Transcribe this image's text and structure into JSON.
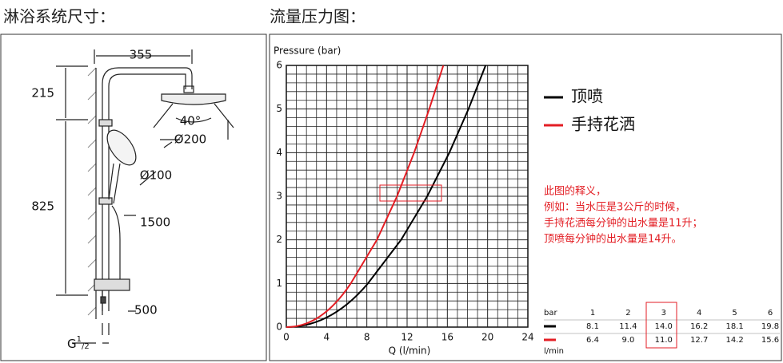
{
  "left_panel": {
    "title": "淋浴系统尺寸：",
    "labels": {
      "width": "355",
      "top_height": "215",
      "angle": "40°",
      "head_diameter": "Ø200",
      "hand_diameter": "Ø100",
      "main_height": "825",
      "total_height": "1500",
      "bottom_height": "500",
      "thread": [
        "G",
        "1",
        "/2"
      ]
    }
  },
  "chart_data": {
    "type": "line",
    "title": "流量压力图：",
    "y_label": "Pressure (bar)",
    "x_label": "Q (l/min)",
    "xlim": [
      0,
      24
    ],
    "xticks": [
      0,
      4,
      8,
      12,
      16,
      20,
      24
    ],
    "ylim": [
      0,
      6
    ],
    "yticks": [
      0,
      1,
      2,
      3,
      4,
      5,
      6
    ],
    "grid": true,
    "pressures": [
      1,
      2,
      3,
      4,
      5,
      6
    ],
    "series": [
      {
        "name": "顶喷",
        "color": "#000000",
        "values": [
          8.1,
          11.4,
          14.0,
          16.2,
          18.1,
          19.8
        ],
        "value_labels": [
          "8.1",
          "11.4",
          "14.0",
          "16.2",
          "18.1",
          "19.8"
        ]
      },
      {
        "name": "手持花洒",
        "color": "#e31e24",
        "values": [
          6.4,
          9.0,
          11.0,
          12.7,
          14.2,
          15.6
        ],
        "value_labels": [
          "6.4",
          "9.0",
          "11.0",
          "12.7",
          "14.2",
          "15.6"
        ]
      }
    ],
    "annotation": [
      "此图的释义，",
      "例如：当水压是3公斤的时候，",
      "手持花洒每分钟的出水量是11升；",
      "顶喷每分钟的出水量是14升。"
    ],
    "table": {
      "pressure_header": "bar",
      "flow_header": "l/min"
    }
  }
}
